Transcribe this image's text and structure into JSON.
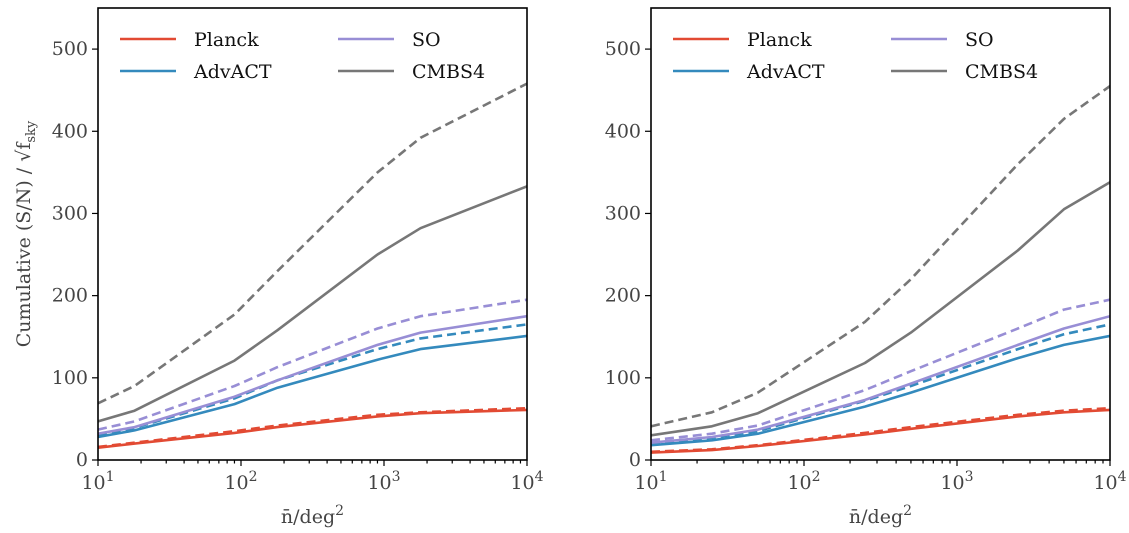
{
  "chart_data": [
    {
      "type": "line",
      "panel": "left",
      "xlabel": "n̄/deg",
      "xlabel_sup": "2",
      "ylabel": "Cumulative (S/N) / √f",
      "ylabel_sub": "sky",
      "xscale": "log",
      "xlim": [
        10,
        10000
      ],
      "ylim": [
        0,
        550
      ],
      "x_ticks": [
        10,
        100,
        1000,
        10000
      ],
      "x_tick_labels": [
        {
          "base": "10",
          "exp": "1"
        },
        {
          "base": "10",
          "exp": "2"
        },
        {
          "base": "10",
          "exp": "3"
        },
        {
          "base": "10",
          "exp": "4"
        }
      ],
      "y_ticks": [
        0,
        100,
        200,
        300,
        400,
        500
      ],
      "y_tick_labels": [
        "0",
        "100",
        "200",
        "300",
        "400",
        "500"
      ],
      "legend": {
        "placement": "top-left",
        "columns": 2
      },
      "series": [
        {
          "name": "Planck",
          "color": "#e24a33",
          "style": "solid",
          "x": [
            10,
            18,
            90,
            180,
            900,
            1800,
            10000
          ],
          "y": [
            15,
            20,
            33,
            40,
            53,
            57,
            61
          ]
        },
        {
          "name": "",
          "color": "#e24a33",
          "style": "dashed",
          "x": [
            10,
            18,
            90,
            180,
            900,
            1800,
            10000
          ],
          "y": [
            16,
            21,
            35,
            42,
            55,
            58,
            63
          ]
        },
        {
          "name": "AdvACT",
          "color": "#348abd",
          "style": "solid",
          "x": [
            10,
            18,
            90,
            180,
            900,
            1800,
            10000
          ],
          "y": [
            28,
            36,
            68,
            88,
            122,
            135,
            151
          ]
        },
        {
          "name": "",
          "color": "#348abd",
          "style": "dashed",
          "x": [
            10,
            18,
            90,
            180,
            900,
            1800,
            10000
          ],
          "y": [
            30,
            39,
            75,
            97,
            135,
            148,
            165
          ]
        },
        {
          "name": "SO",
          "color": "#988ed5",
          "style": "solid",
          "x": [
            10,
            18,
            90,
            180,
            900,
            1800,
            10000
          ],
          "y": [
            32,
            40,
            77,
            97,
            140,
            155,
            175
          ]
        },
        {
          "name": "",
          "color": "#988ed5",
          "style": "dashed",
          "x": [
            10,
            18,
            90,
            180,
            900,
            1800,
            10000
          ],
          "y": [
            37,
            47,
            90,
            113,
            160,
            175,
            195
          ]
        },
        {
          "name": "CMBS4",
          "color": "#777777",
          "style": "solid",
          "x": [
            10,
            18,
            90,
            180,
            900,
            1800,
            10000
          ],
          "y": [
            47,
            60,
            121,
            158,
            250,
            282,
            333
          ]
        },
        {
          "name": "",
          "color": "#777777",
          "style": "dashed",
          "x": [
            10,
            18,
            90,
            180,
            900,
            1800,
            10000
          ],
          "y": [
            69,
            90,
            177,
            230,
            350,
            392,
            458
          ]
        }
      ]
    },
    {
      "type": "line",
      "panel": "right",
      "xlabel": "n̄/deg",
      "xlabel_sup": "2",
      "ylabel": "",
      "ylabel_sub": "",
      "xscale": "log",
      "xlim": [
        10,
        10000
      ],
      "ylim": [
        0,
        550
      ],
      "x_ticks": [
        10,
        100,
        1000,
        10000
      ],
      "x_tick_labels": [
        {
          "base": "10",
          "exp": "1"
        },
        {
          "base": "10",
          "exp": "2"
        },
        {
          "base": "10",
          "exp": "3"
        },
        {
          "base": "10",
          "exp": "4"
        }
      ],
      "y_ticks": [
        0,
        100,
        200,
        300,
        400,
        500
      ],
      "y_tick_labels": [
        "0",
        "100",
        "200",
        "300",
        "400",
        "500"
      ],
      "legend": {
        "placement": "top-left",
        "columns": 2
      },
      "series": [
        {
          "name": "Planck",
          "color": "#e24a33",
          "style": "solid",
          "x": [
            10,
            25,
            50,
            250,
            500,
            2500,
            5000,
            10000
          ],
          "y": [
            9,
            12,
            17,
            31,
            38,
            53,
            58,
            61
          ]
        },
        {
          "name": "",
          "color": "#e24a33",
          "style": "dashed",
          "x": [
            10,
            25,
            50,
            250,
            500,
            2500,
            5000,
            10000
          ],
          "y": [
            10,
            13,
            18,
            33,
            40,
            55,
            60,
            63
          ]
        },
        {
          "name": "AdvACT",
          "color": "#348abd",
          "style": "solid",
          "x": [
            10,
            25,
            50,
            250,
            500,
            2500,
            5000,
            10000
          ],
          "y": [
            18,
            24,
            32,
            65,
            82,
            124,
            140,
            151
          ]
        },
        {
          "name": "",
          "color": "#348abd",
          "style": "dashed",
          "x": [
            10,
            25,
            50,
            250,
            500,
            2500,
            5000,
            10000
          ],
          "y": [
            20,
            27,
            35,
            72,
            90,
            135,
            153,
            165
          ]
        },
        {
          "name": "SO",
          "color": "#988ed5",
          "style": "solid",
          "x": [
            10,
            25,
            50,
            250,
            500,
            2500,
            5000,
            10000
          ],
          "y": [
            21,
            28,
            37,
            73,
            93,
            140,
            160,
            175
          ]
        },
        {
          "name": "",
          "color": "#988ed5",
          "style": "dashed",
          "x": [
            10,
            25,
            50,
            250,
            500,
            2500,
            5000,
            10000
          ],
          "y": [
            24,
            32,
            42,
            85,
            108,
            160,
            183,
            195
          ]
        },
        {
          "name": "CMBS4",
          "color": "#777777",
          "style": "solid",
          "x": [
            10,
            25,
            50,
            250,
            500,
            2500,
            5000,
            10000
          ],
          "y": [
            30,
            41,
            57,
            118,
            155,
            255,
            305,
            338
          ]
        },
        {
          "name": "",
          "color": "#777777",
          "style": "dashed",
          "x": [
            10,
            25,
            50,
            250,
            500,
            2500,
            5000,
            10000
          ],
          "y": [
            41,
            58,
            82,
            168,
            220,
            360,
            415,
            455
          ]
        }
      ]
    }
  ]
}
